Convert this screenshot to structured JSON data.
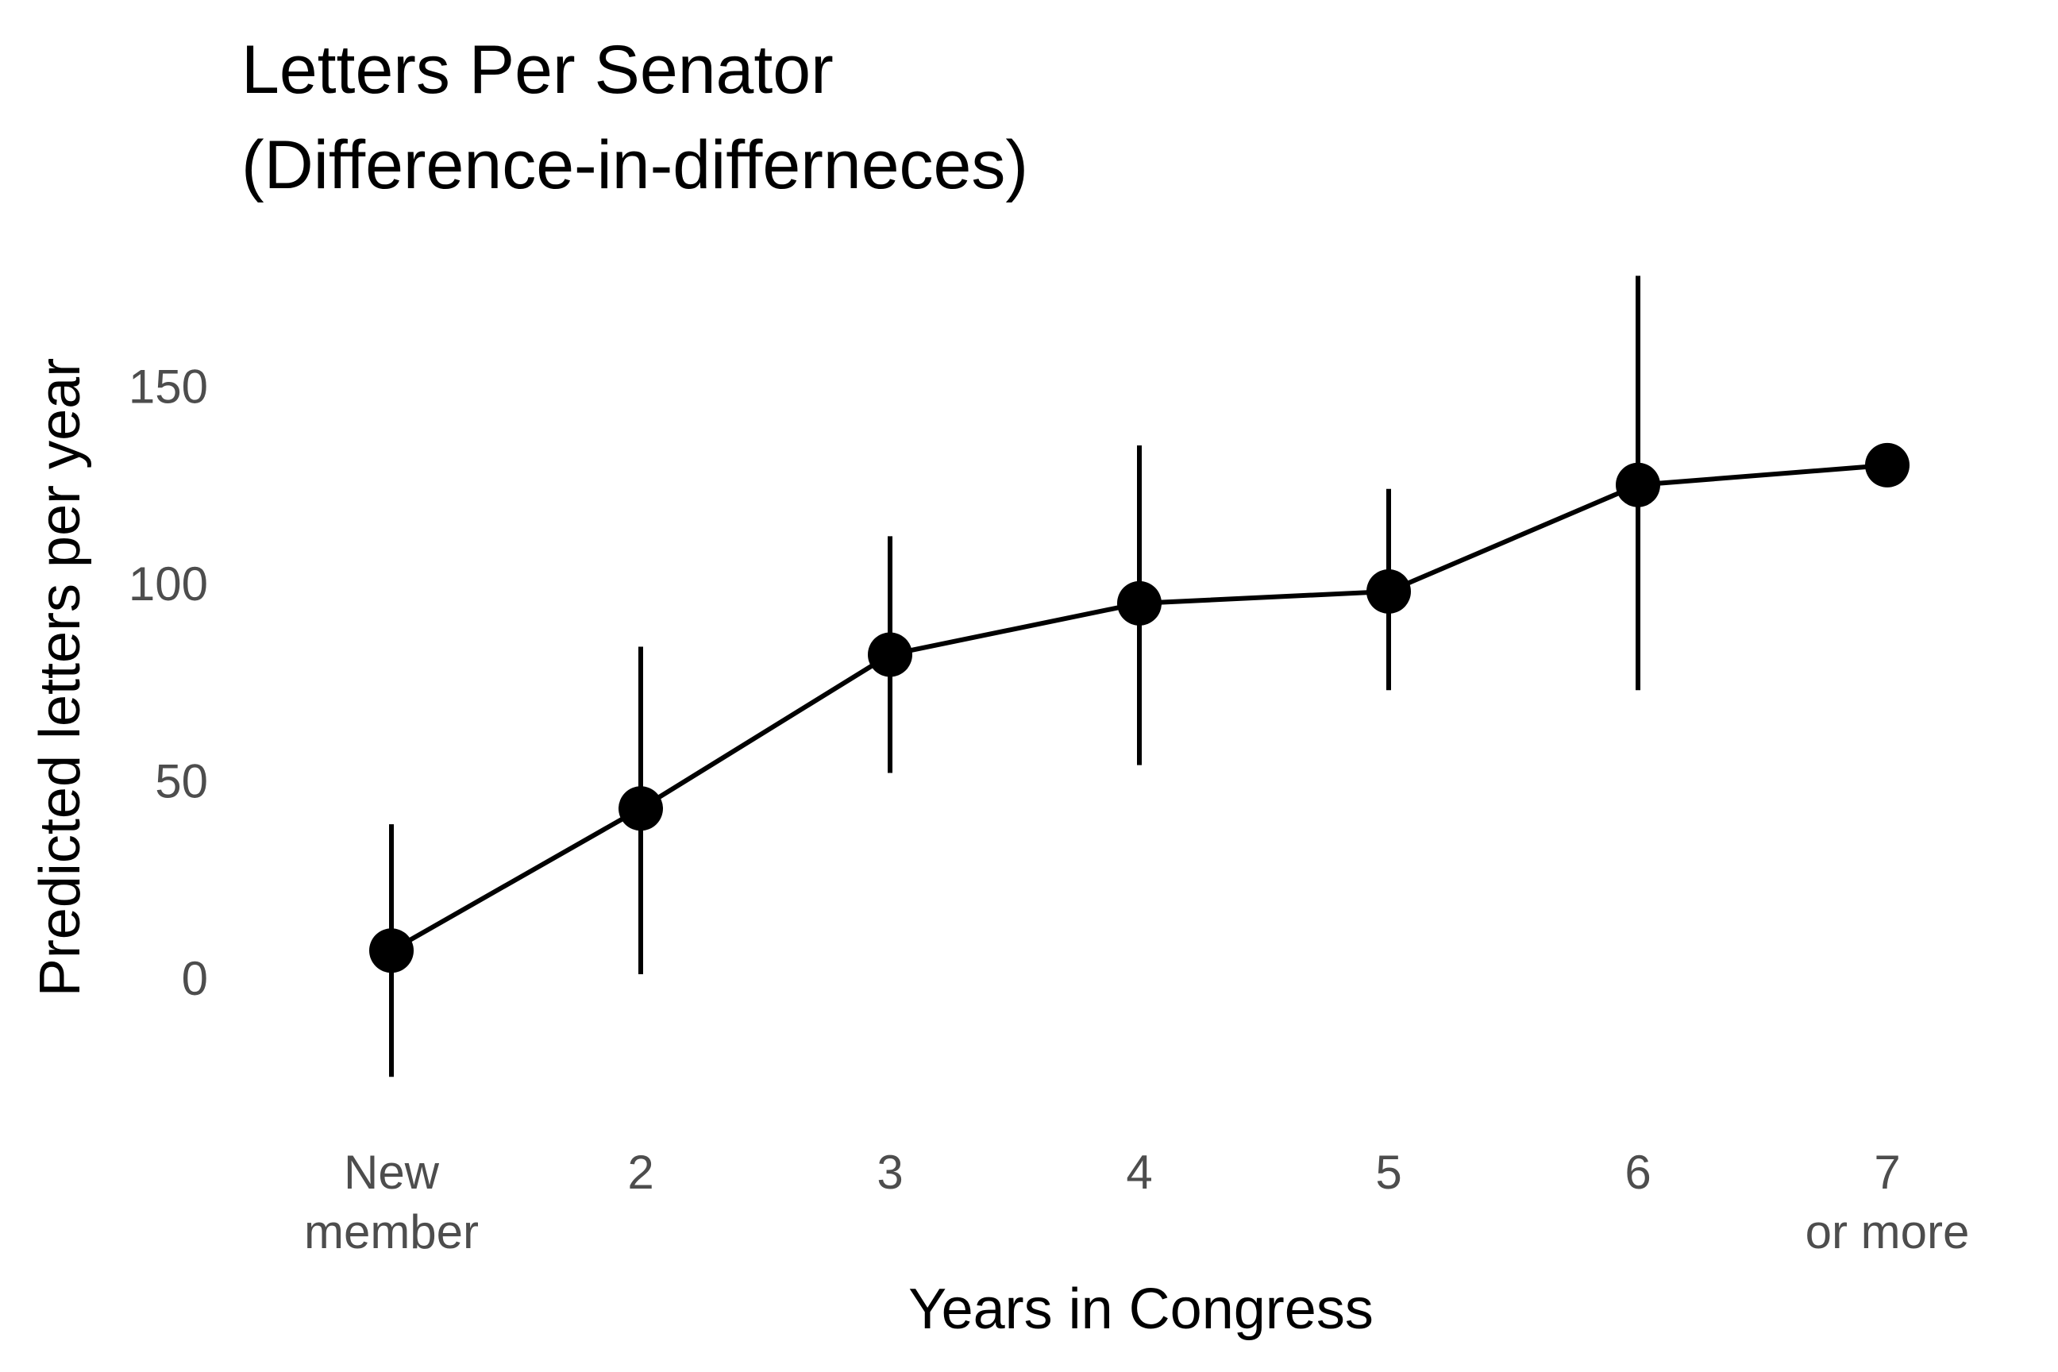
{
  "chart_data": {
    "type": "line",
    "title_lines": [
      "Letters Per Senator",
      "(Difference-in-differneces)"
    ],
    "xlabel": "Years in Congress",
    "ylabel": "Predicted letters per year",
    "categories": [
      [
        "New",
        "member"
      ],
      [
        "2"
      ],
      [
        "3"
      ],
      [
        "4"
      ],
      [
        "5"
      ],
      [
        "6"
      ],
      [
        "7",
        "or more"
      ]
    ],
    "yticks": [
      0,
      50,
      100,
      150
    ],
    "ylim": [
      -35,
      180
    ],
    "grid": false,
    "series": [
      {
        "values": [
          7,
          43,
          82,
          95,
          98,
          125,
          130
        ],
        "lower": [
          -25,
          1,
          52,
          54,
          73,
          73,
          null
        ],
        "upper": [
          39,
          84,
          112,
          135,
          124,
          178,
          null
        ],
        "color": "#000000"
      }
    ]
  }
}
